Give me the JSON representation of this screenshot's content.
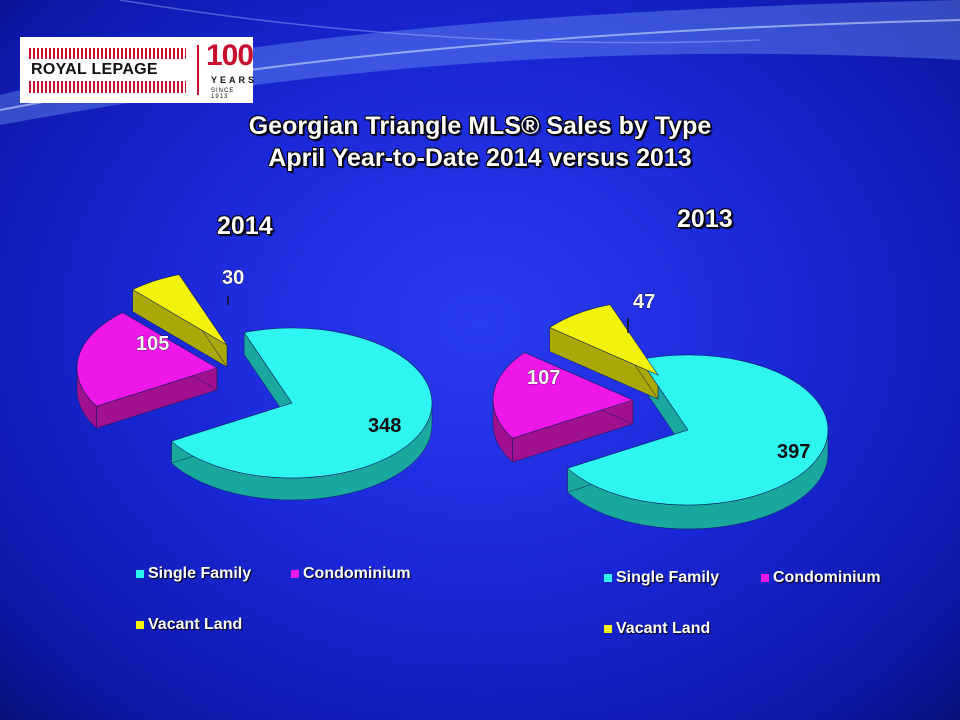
{
  "logo": {
    "brand": "ROYAL LEPAGE",
    "anniversary": "100",
    "years": "YEARS",
    "since": "SINCE 1913"
  },
  "title_line1": "Georgian Triangle MLS® Sales by Type",
  "title_line2": "April Year-to-Date 2014 versus 2013",
  "colors": {
    "single_family": "#2ef5f0",
    "condominium": "#f018e8",
    "vacant_land": "#f2f20a"
  },
  "chart_data": [
    {
      "type": "pie",
      "title": "2014",
      "categories": [
        "Single Family",
        "Condominium",
        "Vacant Land"
      ],
      "values": [
        348,
        105,
        30
      ],
      "legend": "bottom"
    },
    {
      "type": "pie",
      "title": "2013",
      "categories": [
        "Single Family",
        "Condominium",
        "Vacant Land"
      ],
      "values": [
        397,
        107,
        47
      ],
      "legend": "bottom"
    }
  ]
}
